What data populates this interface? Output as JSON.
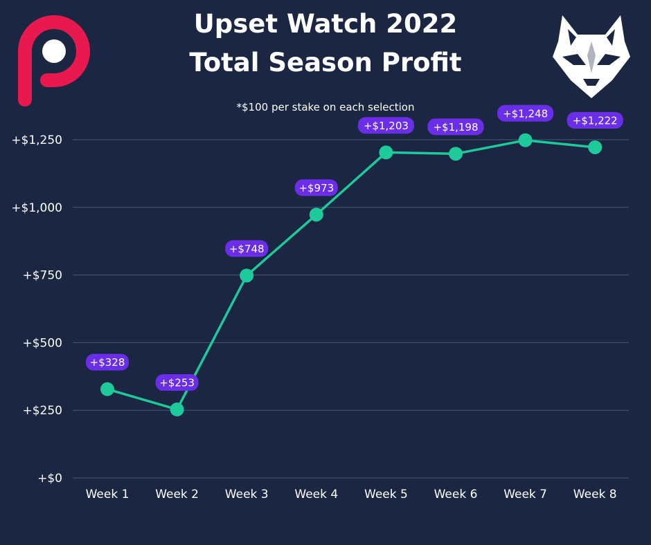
{
  "header": {
    "title_line1": "Upset Watch 2022",
    "title_line2": "Total Season Profit",
    "subtitle": "*$100 per stake on each selection"
  },
  "logos": {
    "left": "brand-p-logo",
    "right": "wolf-head-logo"
  },
  "colors": {
    "background": "#1b2742",
    "line": "#1ec99a",
    "marker": "#1ec99a",
    "label_bg": "#6b2ee8",
    "grid": "#4b5776",
    "brand": "#e8194f"
  },
  "chart_data": {
    "type": "line",
    "title": "Upset Watch 2022 Total Season Profit",
    "categories": [
      "Week 1",
      "Week 2",
      "Week 3",
      "Week 4",
      "Week 5",
      "Week 6",
      "Week 7",
      "Week 8"
    ],
    "values": [
      328,
      253,
      748,
      973,
      1203,
      1198,
      1248,
      1222
    ],
    "data_labels": [
      "+$328",
      "+$253",
      "+$748",
      "+$973",
      "+$1,203",
      "+$1,198",
      "+$1,248",
      "+$1,222"
    ],
    "y_ticks": [
      0,
      250,
      500,
      750,
      1000,
      1250
    ],
    "y_tick_labels": [
      "+$0",
      "+$250",
      "+$500",
      "+$750",
      "+$1,000",
      "+$1,250"
    ],
    "ylim": [
      0,
      1250
    ],
    "grid": true,
    "legend": "none"
  }
}
